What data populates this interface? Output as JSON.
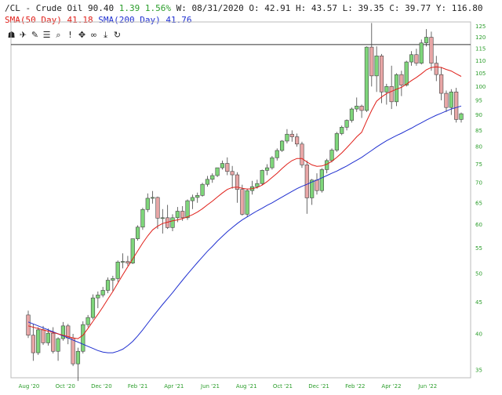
{
  "header": {
    "symbol": "/CL - Crude Oil",
    "price": "90.40",
    "change": "1.39",
    "change_pct": "1.56%",
    "w_label": "W:",
    "date": "08/31/2020",
    "o_label": "O:",
    "open": "42.91",
    "h_label": "H:",
    "high": "43.57",
    "l_label": "L:",
    "low": "39.35",
    "c_label": "C:",
    "close": "39.77",
    "y_label": "Y:",
    "y_value": "116.80",
    "sma50_label": "SMA(50 Day)",
    "sma50_value": "41.18",
    "sma200_label": "SMA(200 Day)",
    "sma200_value": "41.76"
  },
  "toolbar": {
    "icons": [
      "car-icon",
      "twitter-icon",
      "comment-icon",
      "list-icon",
      "search-icon",
      "alert-icon",
      "move-icon",
      "link-icon",
      "download-icon",
      "refresh-icon"
    ],
    "glyphs": [
      "☗",
      "✈",
      "✎",
      "☰",
      "⌕",
      "!",
      "✥",
      "∞",
      "⤓",
      "↻"
    ]
  },
  "colors": {
    "up": "#7ed67a",
    "down": "#e8a6a6",
    "sma50": "#e0201a",
    "sma200": "#2030d0",
    "axis_text": "#2a9d2a"
  },
  "chart_data": {
    "type": "candlestick",
    "scale": "log",
    "ylim": [
      34,
      127
    ],
    "yticks": [
      35,
      40,
      45,
      50,
      55,
      60,
      65,
      70,
      75,
      80,
      85,
      90,
      95,
      100,
      105,
      110,
      115,
      120,
      125
    ],
    "xticks": [
      "Aug '20",
      "Oct '20",
      "Dec '20",
      "Feb '21",
      "Apr '21",
      "Jun '21",
      "Aug '21",
      "Oct '21",
      "Dec '21",
      "Feb '22",
      "Apr '22",
      "Jun '22"
    ],
    "horizontal_line": 116.8,
    "candles": [
      [
        42.9,
        43.6,
        39.4,
        39.8
      ],
      [
        39.8,
        41.5,
        36.2,
        37.3
      ],
      [
        37.3,
        41.0,
        37.0,
        40.6
      ],
      [
        40.6,
        41.2,
        38.4,
        38.7
      ],
      [
        38.7,
        40.8,
        38.3,
        40.1
      ],
      [
        40.1,
        41.0,
        37.2,
        37.5
      ],
      [
        37.5,
        39.5,
        36.2,
        39.3
      ],
      [
        39.3,
        41.8,
        39.0,
        41.2
      ],
      [
        41.2,
        41.5,
        38.5,
        39.4
      ],
      [
        39.4,
        40.0,
        35.5,
        35.8
      ],
      [
        35.8,
        38.0,
        33.6,
        37.5
      ],
      [
        37.5,
        41.9,
        37.2,
        41.4
      ],
      [
        41.4,
        42.9,
        41.0,
        42.5
      ],
      [
        42.5,
        46.3,
        42.2,
        45.7
      ],
      [
        45.7,
        46.8,
        44.0,
        46.2
      ],
      [
        46.2,
        47.6,
        45.8,
        47.0
      ],
      [
        47.0,
        49.3,
        46.5,
        48.8
      ],
      [
        48.8,
        49.6,
        46.8,
        49.1
      ],
      [
        49.1,
        52.5,
        48.5,
        52.2
      ],
      [
        52.2,
        53.9,
        51.0,
        52.3
      ],
      [
        52.3,
        53.4,
        51.5,
        52.0
      ],
      [
        52.0,
        56.8,
        51.8,
        56.9
      ],
      [
        56.9,
        59.8,
        56.5,
        59.4
      ],
      [
        59.4,
        63.8,
        58.8,
        63.4
      ],
      [
        63.4,
        67.3,
        62.8,
        66.1
      ],
      [
        66.1,
        67.9,
        64.8,
        66.3
      ],
      [
        66.3,
        66.5,
        59.0,
        61.4
      ],
      [
        61.4,
        63.5,
        58.0,
        61.5
      ],
      [
        61.5,
        64.5,
        59.0,
        59.3
      ],
      [
        59.3,
        62.3,
        58.5,
        61.5
      ],
      [
        61.5,
        64.0,
        60.5,
        63.0
      ],
      [
        63.0,
        64.2,
        60.8,
        61.5
      ],
      [
        61.5,
        65.8,
        61.0,
        65.5
      ],
      [
        65.5,
        67.0,
        63.5,
        66.3
      ],
      [
        66.3,
        67.5,
        65.0,
        66.8
      ],
      [
        66.8,
        70.0,
        66.5,
        69.6
      ],
      [
        69.6,
        71.8,
        69.0,
        70.9
      ],
      [
        70.9,
        72.5,
        70.0,
        71.9
      ],
      [
        71.9,
        74.0,
        71.5,
        74.0
      ],
      [
        74.0,
        76.0,
        73.5,
        75.2
      ],
      [
        75.2,
        76.9,
        72.0,
        73.0
      ],
      [
        73.0,
        74.5,
        68.5,
        72.1
      ],
      [
        72.1,
        72.8,
        65.0,
        68.3
      ],
      [
        68.3,
        69.5,
        62.0,
        62.3
      ],
      [
        62.3,
        68.5,
        61.7,
        68.0
      ],
      [
        68.0,
        70.5,
        67.0,
        69.0
      ],
      [
        69.0,
        70.8,
        68.5,
        69.8
      ],
      [
        69.8,
        73.5,
        69.5,
        73.3
      ],
      [
        73.3,
        75.0,
        72.0,
        74.0
      ],
      [
        74.0,
        77.3,
        73.5,
        76.8
      ],
      [
        76.8,
        79.5,
        76.0,
        78.9
      ],
      [
        78.9,
        82.0,
        78.5,
        81.7
      ],
      [
        81.7,
        85.4,
        81.0,
        83.8
      ],
      [
        83.8,
        85.0,
        81.5,
        83.0
      ],
      [
        83.0,
        84.0,
        80.0,
        80.8
      ],
      [
        80.8,
        81.5,
        74.0,
        74.8
      ],
      [
        74.8,
        76.0,
        62.4,
        66.2
      ],
      [
        66.2,
        71.0,
        64.5,
        70.7
      ],
      [
        70.7,
        72.5,
        67.0,
        68.0
      ],
      [
        68.0,
        73.9,
        67.5,
        73.5
      ],
      [
        73.5,
        76.5,
        72.5,
        76.0
      ],
      [
        76.0,
        79.5,
        75.5,
        79.0
      ],
      [
        79.0,
        84.5,
        78.5,
        84.0
      ],
      [
        84.0,
        86.5,
        83.5,
        86.0
      ],
      [
        86.0,
        88.5,
        85.0,
        88.2
      ],
      [
        88.2,
        92.5,
        87.5,
        92.0
      ],
      [
        92.0,
        96.0,
        91.0,
        93.0
      ],
      [
        93.0,
        93.5,
        89.0,
        91.5
      ],
      [
        91.5,
        116.0,
        91.0,
        115.7
      ],
      [
        115.7,
        126.5,
        100.0,
        104.0
      ],
      [
        104.0,
        116.0,
        98.0,
        112.0
      ],
      [
        112.0,
        112.8,
        94.0,
        98.0
      ],
      [
        98.0,
        101.0,
        93.5,
        100.0
      ],
      [
        100.0,
        108.0,
        92.0,
        94.5
      ],
      [
        94.5,
        105.0,
        93.0,
        104.5
      ],
      [
        104.5,
        106.0,
        96.5,
        100.5
      ],
      [
        100.5,
        110.0,
        100.0,
        109.5
      ],
      [
        109.5,
        114.0,
        108.0,
        112.5
      ],
      [
        112.5,
        115.0,
        108.0,
        109.0
      ],
      [
        109.0,
        119.0,
        108.5,
        117.5
      ],
      [
        117.5,
        123.7,
        116.0,
        120.0
      ],
      [
        120.0,
        122.5,
        106.0,
        109.0
      ],
      [
        109.0,
        112.0,
        102.0,
        104.5
      ],
      [
        104.5,
        107.5,
        95.0,
        97.5
      ],
      [
        97.5,
        98.5,
        91.0,
        92.5
      ],
      [
        92.5,
        99.0,
        90.0,
        98.0
      ],
      [
        98.0,
        99.5,
        87.5,
        88.5
      ],
      [
        88.5,
        90.8,
        87.5,
        90.4
      ]
    ],
    "sma50": [
      41.2,
      41.0,
      40.8,
      40.6,
      40.4,
      40.2,
      40.0,
      39.8,
      39.6,
      39.4,
      39.3,
      39.8,
      40.8,
      41.9,
      43.0,
      44.2,
      45.5,
      46.8,
      48.3,
      49.8,
      51.3,
      52.8,
      54.4,
      56.0,
      57.5,
      58.8,
      59.6,
      60.2,
      60.5,
      60.8,
      61.0,
      61.3,
      61.7,
      62.2,
      62.8,
      63.6,
      64.5,
      65.4,
      66.4,
      67.4,
      68.3,
      68.8,
      68.9,
      68.6,
      68.4,
      68.5,
      68.8,
      69.4,
      70.3,
      71.4,
      72.5,
      73.8,
      75.0,
      76.0,
      76.6,
      76.6,
      75.6,
      74.8,
      74.4,
      74.5,
      75.0,
      75.8,
      76.9,
      78.2,
      79.7,
      81.3,
      83.0,
      84.4,
      88.0,
      91.5,
      94.7,
      96.2,
      97.4,
      98.2,
      99.0,
      99.7,
      100.9,
      102.2,
      103.4,
      104.8,
      106.4,
      107.3,
      107.5,
      107.3,
      106.5,
      105.9,
      104.8,
      103.8
    ],
    "sma200": [
      41.8,
      41.5,
      41.2,
      40.9,
      40.6,
      40.3,
      40.0,
      39.7,
      39.4,
      39.1,
      38.8,
      38.5,
      38.2,
      37.9,
      37.6,
      37.4,
      37.3,
      37.3,
      37.5,
      37.8,
      38.3,
      38.9,
      39.7,
      40.6,
      41.6,
      42.6,
      43.6,
      44.6,
      45.6,
      46.6,
      47.7,
      48.8,
      49.9,
      51.0,
      52.1,
      53.2,
      54.3,
      55.3,
      56.4,
      57.4,
      58.4,
      59.3,
      60.2,
      61.0,
      61.7,
      62.4,
      63.1,
      63.7,
      64.4,
      65.0,
      65.7,
      66.4,
      67.1,
      67.8,
      68.5,
      69.1,
      69.6,
      70.2,
      70.7,
      71.3,
      71.9,
      72.5,
      73.1,
      73.8,
      74.5,
      75.3,
      76.1,
      76.9,
      77.9,
      78.9,
      79.9,
      80.9,
      81.8,
      82.6,
      83.4,
      84.1,
      84.9,
      85.7,
      86.6,
      87.4,
      88.3,
      89.1,
      89.9,
      90.6,
      91.3,
      92.0,
      92.5,
      93.0
    ]
  }
}
